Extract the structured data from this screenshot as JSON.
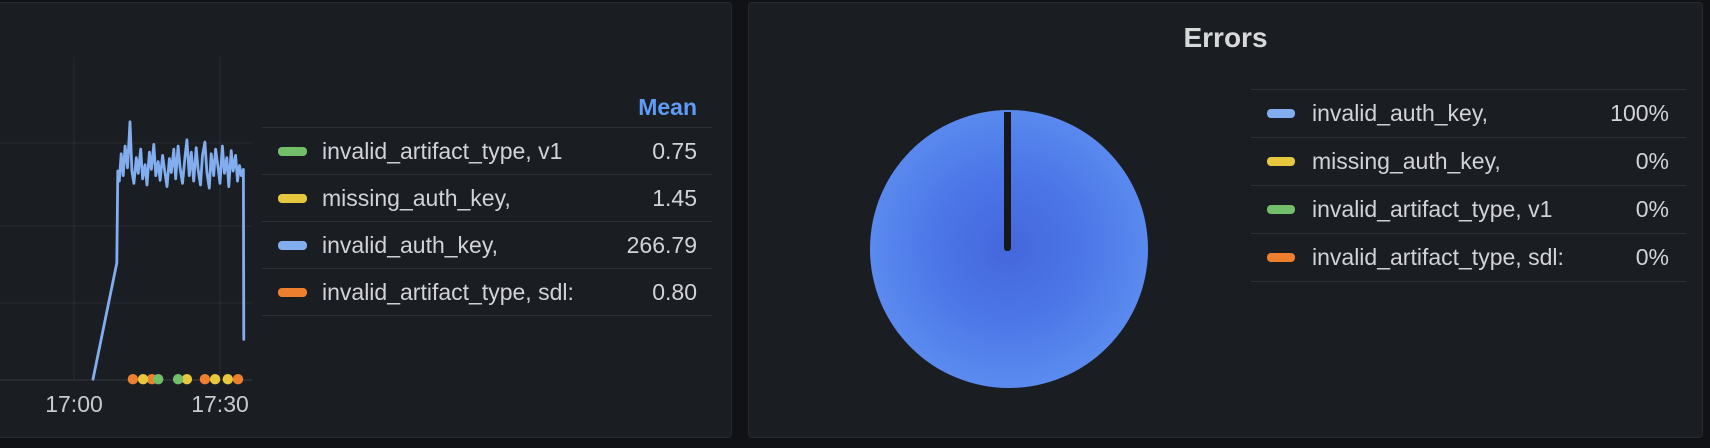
{
  "colors": {
    "page_bg": "#101216",
    "panel_bg": "#1a1d22",
    "accent_blue": "#5e9cf7",
    "series_green": "#73bf69",
    "series_yellow": "#e6c73d",
    "series_blue": "#82aef0",
    "series_orange": "#ee7f2e"
  },
  "chart_data": [
    {
      "type": "line",
      "title": "",
      "xlabel": "",
      "ylabel": "",
      "x_ticks": [
        "17:00",
        "17:30"
      ],
      "x_tick_minutes": [
        0,
        30
      ],
      "ylim": [
        0,
        420
      ],
      "grid": true,
      "legend": {
        "position": "right",
        "display": "table",
        "header": "Mean",
        "rows": [
          {
            "label": "invalid_artifact_type, v1",
            "mean": "0.75",
            "color": "#73bf69"
          },
          {
            "label": "missing_auth_key,",
            "mean": "1.45",
            "color": "#e6c73d"
          },
          {
            "label": "invalid_auth_key,",
            "mean": "266.79",
            "color": "#82aef0"
          },
          {
            "label": "invalid_artifact_type, sdl:",
            "mean": "0.80",
            "color": "#ee7f2e"
          }
        ]
      },
      "series": [
        {
          "name": "invalid_auth_key,",
          "color": "#82aef0",
          "style": "line",
          "mean": 266.79,
          "points": [
            [
              3.9,
              1
            ],
            [
              8.8,
              150
            ],
            [
              9.0,
              268
            ],
            [
              9.3,
              255
            ],
            [
              9.7,
              290
            ],
            [
              10.1,
              262
            ],
            [
              10.5,
              300
            ],
            [
              11.0,
              272
            ],
            [
              11.5,
              331
            ],
            [
              11.9,
              268
            ],
            [
              12.3,
              252
            ],
            [
              12.8,
              285
            ],
            [
              13.2,
              265
            ],
            [
              13.7,
              296
            ],
            [
              14.1,
              258
            ],
            [
              14.6,
              276
            ],
            [
              15.0,
              250
            ],
            [
              15.5,
              292
            ],
            [
              15.9,
              270
            ],
            [
              16.4,
              302
            ],
            [
              16.8,
              262
            ],
            [
              17.3,
              280
            ],
            [
              17.7,
              256
            ],
            [
              18.2,
              288
            ],
            [
              18.6,
              270
            ],
            [
              19.1,
              248
            ],
            [
              19.6,
              284
            ],
            [
              20.0,
              266
            ],
            [
              20.5,
              296
            ],
            [
              20.9,
              258
            ],
            [
              21.4,
              300
            ],
            [
              21.8,
              272
            ],
            [
              22.3,
              252
            ],
            [
              22.8,
              286
            ],
            [
              23.2,
              308
            ],
            [
              23.7,
              262
            ],
            [
              24.1,
              292
            ],
            [
              24.6,
              255
            ],
            [
              25.1,
              298
            ],
            [
              25.5,
              270
            ],
            [
              26.0,
              250
            ],
            [
              26.4,
              288
            ],
            [
              26.9,
              305
            ],
            [
              27.3,
              266
            ],
            [
              27.8,
              246
            ],
            [
              28.2,
              290
            ],
            [
              28.7,
              262
            ],
            [
              29.1,
              296
            ],
            [
              29.6,
              272
            ],
            [
              30.0,
              252
            ],
            [
              30.5,
              300
            ],
            [
              30.9,
              265
            ],
            [
              31.4,
              285
            ],
            [
              31.8,
              248
            ],
            [
              32.3,
              294
            ],
            [
              32.7,
              268
            ],
            [
              33.2,
              288
            ],
            [
              33.6,
              255
            ],
            [
              34.0,
              275
            ],
            [
              34.4,
              262
            ],
            [
              34.8,
              270
            ],
            [
              34.9,
              52
            ]
          ]
        },
        {
          "name": "invalid_artifact_type, sdl:",
          "color": "#ee7f2e",
          "style": "points",
          "mean": 0.8,
          "points": [
            [
              12.1,
              1
            ],
            [
              16.0,
              1
            ],
            [
              26.9,
              1
            ],
            [
              33.7,
              1
            ]
          ]
        },
        {
          "name": "missing_auth_key,",
          "color": "#e6c73d",
          "style": "points",
          "mean": 1.45,
          "points": [
            [
              14.2,
              1
            ],
            [
              23.2,
              1
            ],
            [
              29.0,
              1
            ],
            [
              31.6,
              1
            ]
          ]
        },
        {
          "name": "invalid_artifact_type, v1",
          "color": "#73bf69",
          "style": "points",
          "mean": 0.75,
          "points": [
            [
              17.3,
              1
            ],
            [
              21.4,
              1
            ]
          ]
        }
      ]
    },
    {
      "type": "pie",
      "title": "Errors",
      "legend": {
        "position": "right",
        "display": "table"
      },
      "pie_gradient": [
        "#4567dc",
        "#4c77e8",
        "#679cf4"
      ],
      "slices": [
        {
          "label": "invalid_auth_key,",
          "value": "100%",
          "pct": 100,
          "color": "#82aef0"
        },
        {
          "label": "missing_auth_key,",
          "value": "0%",
          "pct": 0,
          "color": "#e6c73d"
        },
        {
          "label": "invalid_artifact_type, v1",
          "value": "0%",
          "pct": 0,
          "color": "#73bf69"
        },
        {
          "label": "invalid_artifact_type, sdl:",
          "value": "0%",
          "pct": 0,
          "color": "#ee7f2e"
        }
      ]
    }
  ]
}
